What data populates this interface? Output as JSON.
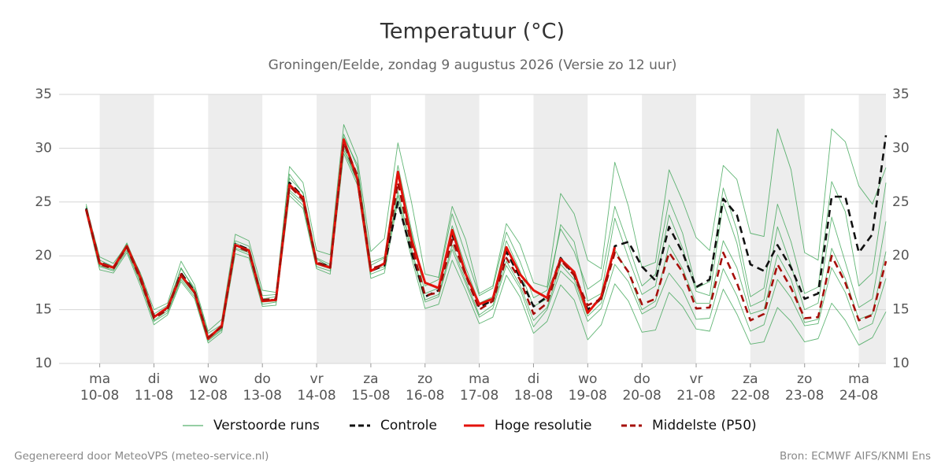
{
  "chart_data": {
    "type": "line",
    "title": "Temperatuur (°C)",
    "subtitle": "Groningen/Eelde, zondag  9 augustus 2026 (Versie zo 12 uur)",
    "footer_left": "Gegenereerd door MeteoVPS (meteo-service.nl)",
    "footer_right": "Bron: ECMWF AIFS/KNMI Ens",
    "x": [
      -6,
      0,
      6,
      12,
      18,
      24,
      30,
      36,
      42,
      48,
      54,
      60,
      66,
      72,
      78,
      84,
      90,
      96,
      102,
      108,
      114,
      120,
      126,
      132,
      138,
      144,
      150,
      156,
      162,
      168,
      174,
      180,
      186,
      192,
      198,
      204,
      210,
      216,
      222,
      228,
      234,
      240,
      246,
      252,
      258,
      264,
      270,
      276,
      282,
      288,
      294,
      300,
      306,
      312,
      318,
      324,
      330,
      336,
      342,
      348
    ],
    "xlim": [
      -18,
      348
    ],
    "xticks": [
      {
        "value": 0,
        "label": "ma",
        "date": "10-08"
      },
      {
        "value": 24,
        "label": "di",
        "date": "11-08"
      },
      {
        "value": 48,
        "label": "wo",
        "date": "12-08"
      },
      {
        "value": 72,
        "label": "do",
        "date": "13-08"
      },
      {
        "value": 96,
        "label": "vr",
        "date": "14-08"
      },
      {
        "value": 120,
        "label": "za",
        "date": "15-08"
      },
      {
        "value": 144,
        "label": "zo",
        "date": "16-08"
      },
      {
        "value": 168,
        "label": "ma",
        "date": "17-08"
      },
      {
        "value": 192,
        "label": "di",
        "date": "18-08"
      },
      {
        "value": 216,
        "label": "wo",
        "date": "19-08"
      },
      {
        "value": 240,
        "label": "do",
        "date": "20-08"
      },
      {
        "value": 264,
        "label": "vr",
        "date": "21-08"
      },
      {
        "value": 288,
        "label": "za",
        "date": "22-08"
      },
      {
        "value": 312,
        "label": "zo",
        "date": "23-08"
      },
      {
        "value": 336,
        "label": "ma",
        "date": "24-08"
      }
    ],
    "ylim": [
      10,
      35
    ],
    "yticks": [
      10,
      15,
      20,
      25,
      30,
      35
    ],
    "grid": true,
    "shade_alternate_days": true,
    "series": [
      {
        "name": "Verstoorde runs",
        "color": "#2e9e48",
        "members": [
          [
            24.5,
            19.6,
            19.0,
            21.2,
            18.2,
            14.6,
            15.4,
            18.8,
            17.0,
            12.8,
            13.6,
            21.4,
            20.9,
            16.3,
            16.4,
            27.2,
            25.9,
            19.8,
            19.2,
            31.3,
            28.2,
            19.4,
            19.9,
            28.4,
            22.4,
            17.2,
            17.8,
            23.9,
            20.1,
            16.3,
            17.0,
            22.2,
            19.5,
            16.1,
            16.8,
            22.5,
            20.4,
            16.9,
            17.8,
            24.6,
            21.0,
            17.2,
            18.3,
            25.2,
            22.1,
            17.0,
            17.6,
            26.3,
            22.4,
            16.2,
            17.0,
            24.8,
            21.3,
            16.5,
            17.1,
            26.9,
            24.1,
            17.2,
            18.4,
            26.8
          ],
          [
            24.0,
            18.7,
            18.4,
            20.3,
            17.2,
            13.6,
            14.5,
            17.6,
            16.0,
            11.9,
            12.9,
            20.2,
            19.8,
            15.3,
            15.4,
            25.6,
            24.4,
            18.8,
            18.3,
            29.5,
            26.6,
            17.9,
            18.4,
            25.1,
            19.8,
            15.1,
            15.5,
            19.6,
            16.8,
            13.7,
            14.3,
            18.2,
            16.2,
            12.8,
            13.9,
            17.3,
            15.9,
            12.2,
            13.6,
            17.4,
            15.8,
            12.9,
            13.1,
            16.6,
            15.3,
            13.2,
            13.0,
            16.9,
            14.6,
            11.8,
            12.0,
            15.2,
            13.9,
            12.0,
            12.3,
            15.6,
            14.0,
            11.7,
            12.4,
            14.8
          ],
          [
            24.6,
            19.9,
            19.3,
            21.0,
            18.4,
            15.0,
            15.6,
            19.5,
            17.3,
            13.0,
            14.1,
            22.0,
            21.4,
            16.8,
            16.6,
            28.3,
            26.8,
            20.5,
            20.1,
            32.2,
            29.1,
            20.4,
            21.6,
            30.5,
            25.0,
            18.3,
            18.0,
            24.6,
            21.5,
            16.5,
            17.2,
            23.0,
            21.1,
            17.5,
            17.1,
            25.8,
            23.9,
            19.6,
            18.8,
            28.7,
            24.6,
            18.9,
            19.4,
            28.0,
            25.1,
            21.7,
            20.5,
            28.4,
            27.1,
            22.1,
            21.8,
            31.8,
            28.0,
            20.3,
            19.6,
            31.8,
            30.6,
            26.5,
            24.8,
            28.2
          ],
          [
            24.2,
            19.0,
            18.6,
            20.5,
            17.5,
            13.9,
            14.7,
            17.8,
            16.2,
            12.1,
            13.1,
            20.6,
            20.1,
            15.5,
            15.7,
            25.9,
            24.7,
            19.0,
            18.6,
            29.8,
            26.9,
            18.3,
            18.8,
            25.6,
            20.3,
            15.7,
            16.2,
            20.6,
            17.4,
            14.3,
            15.1,
            19.1,
            17.0,
            13.4,
            15.0,
            18.6,
            17.4,
            13.9,
            15.1,
            19.2,
            17.6,
            14.6,
            15.3,
            18.4,
            16.8,
            14.1,
            14.2,
            18.8,
            16.3,
            13.0,
            13.6,
            17.8,
            16.1,
            13.5,
            13.7,
            18.9,
            16.6,
            13.1,
            13.7,
            17.9
          ],
          [
            24.8,
            19.4,
            18.9,
            21.1,
            17.9,
            14.4,
            15.1,
            18.9,
            16.8,
            12.5,
            13.5,
            21.2,
            20.6,
            16.0,
            16.2,
            27.6,
            25.8,
            19.7,
            19.0,
            31.0,
            28.5,
            19.1,
            19.8,
            27.5,
            22.1,
            16.5,
            17.0,
            22.8,
            18.9,
            15.6,
            16.2,
            21.4,
            18.6,
            15.3,
            16.0,
            22.9,
            21.3,
            15.8,
            16.5,
            23.5,
            19.8,
            16.4,
            17.2,
            23.8,
            20.7,
            16.7,
            16.3,
            24.9,
            21.2,
            15.3,
            15.9,
            22.7,
            19.1,
            15.0,
            15.6,
            23.6,
            19.4,
            15.2,
            16.0,
            23.2
          ],
          [
            24.1,
            19.1,
            18.7,
            20.7,
            17.7,
            14.0,
            14.9,
            18.0,
            16.4,
            12.2,
            13.2,
            20.7,
            20.3,
            15.7,
            15.8,
            26.1,
            25.0,
            19.2,
            18.8,
            30.1,
            27.0,
            18.6,
            19.0,
            26.0,
            20.7,
            15.9,
            16.4,
            21.0,
            17.7,
            14.5,
            15.4,
            19.5,
            17.3,
            14.0,
            15.2,
            19.2,
            17.8,
            14.4,
            15.6,
            20.6,
            18.4,
            15.0,
            15.8,
            21.0,
            18.8,
            15.6,
            15.6,
            21.4,
            18.9,
            14.6,
            15.0,
            20.1,
            17.8,
            13.8,
            14.1,
            20.7,
            17.9,
            14.1,
            14.6,
            20.4
          ]
        ]
      },
      {
        "name": "Controle",
        "color": "#111111",
        "dashed": true,
        "values": [
          24.4,
          19.4,
          18.9,
          20.9,
          18.1,
          14.4,
          15.1,
          18.4,
          16.7,
          12.4,
          13.4,
          21.1,
          20.6,
          15.9,
          15.9,
          26.8,
          25.5,
          19.4,
          19.0,
          30.6,
          27.1,
          18.6,
          19.1,
          25.0,
          20.3,
          16.2,
          16.8,
          22.0,
          18.2,
          15.2,
          15.9,
          20.4,
          18.0,
          15.3,
          16.2,
          19.8,
          18.2,
          15.0,
          16.0,
          20.9,
          21.3,
          19,
          17.7,
          22.7,
          20.3,
          17.1,
          17.8,
          25.3,
          23.8,
          19.2,
          18.6,
          21,
          18.9,
          16,
          16.5,
          25.5,
          25.5,
          20.3,
          22,
          31.2
        ]
      },
      {
        "name": "Hoge resolutie",
        "color": "#e3120b",
        "values": [
          24.3,
          19.3,
          18.9,
          20.9,
          18,
          14.3,
          15.2,
          18.2,
          16.6,
          12.3,
          13.5,
          21,
          20.5,
          15.8,
          15.9,
          26.6,
          25.4,
          19.3,
          18.9,
          30.8,
          27.2,
          18.6,
          19.3,
          27.8,
          21.5,
          17.5,
          17,
          22.4,
          18.3,
          15.5,
          16,
          20.8,
          18.3,
          16.8,
          16.1,
          19.7,
          18.5,
          14.7,
          16.2,
          20.8,
          null,
          null,
          null,
          null,
          null,
          null,
          null,
          null,
          null,
          null,
          null,
          null,
          null,
          null,
          null,
          null,
          null,
          null,
          null,
          null
        ]
      },
      {
        "name": "Middelste (P50)",
        "color": "#a50f0a",
        "dashed": true,
        "values": [
          24.3,
          19.2,
          18.8,
          20.8,
          17.8,
          14.2,
          15,
          18.3,
          16.6,
          12.4,
          13.4,
          20.9,
          20.4,
          15.9,
          16,
          26.5,
          25.2,
          19.4,
          18.9,
          30.5,
          27.5,
          18.8,
          19.2,
          26.8,
          21,
          16.3,
          16.6,
          21.5,
          18.2,
          15,
          15.8,
          19.8,
          17.8,
          14.6,
          15.6,
          19.6,
          18.2,
          15.4,
          16,
          20.3,
          18.5,
          15.5,
          16,
          20.3,
          18.5,
          15.1,
          15.2,
          20.3,
          17.5,
          14,
          14.6,
          19.2,
          17,
          14.2,
          14.3,
          20,
          17.5,
          14,
          14.5,
          19.5
        ]
      }
    ]
  }
}
